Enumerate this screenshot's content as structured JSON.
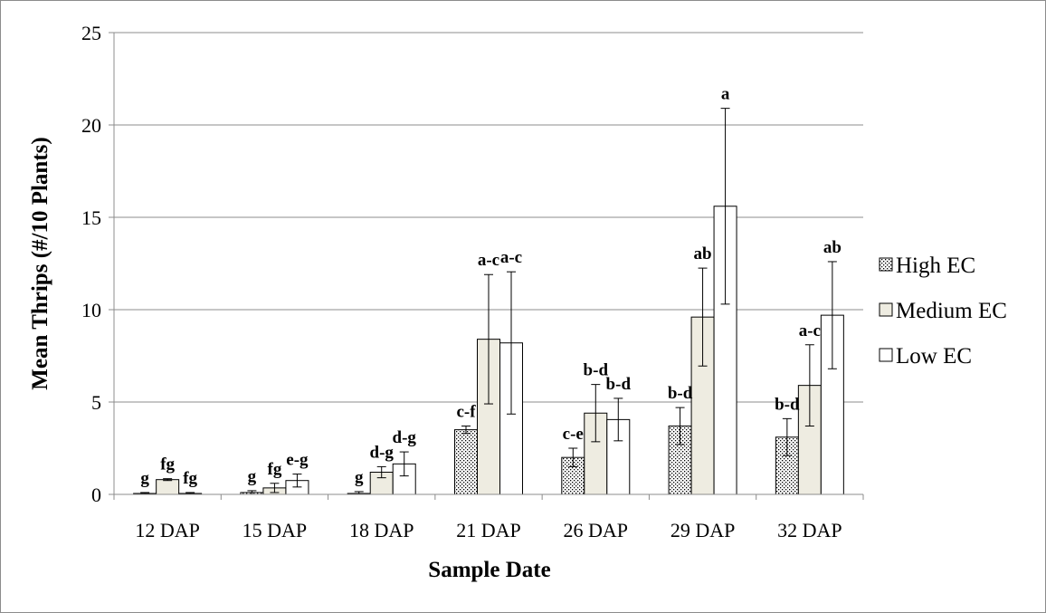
{
  "chart_data": {
    "type": "bar",
    "xlabel": "Sample Date",
    "ylabel": "Mean Thrips (#/10 Plants)",
    "ylim": [
      0,
      25
    ],
    "yticks": [
      0,
      5,
      10,
      15,
      20,
      25
    ],
    "grid": "horizontal",
    "legend_position": "right",
    "categories": [
      "12 DAP",
      "15 DAP",
      "18 DAP",
      "21 DAP",
      "26 DAP",
      "29 DAP",
      "32 DAP"
    ],
    "series": [
      {
        "name": "High EC",
        "pattern": "dotted",
        "fill": "#ffffff",
        "values": [
          0.05,
          0.1,
          0.05,
          3.5,
          2.0,
          3.7,
          3.1
        ],
        "errors": [
          0.05,
          0.1,
          0.1,
          0.2,
          0.5,
          1.0,
          1.0
        ],
        "labels": [
          "g",
          "g",
          "g",
          "c-f",
          "c-e",
          "b-d",
          "b-d"
        ]
      },
      {
        "name": "Medium EC",
        "pattern": "solid",
        "fill": "#eeece1",
        "values": [
          0.8,
          0.35,
          1.2,
          8.4,
          4.4,
          9.6,
          5.9
        ],
        "errors": [
          0.05,
          0.25,
          0.3,
          3.5,
          1.55,
          2.65,
          2.2
        ],
        "labels": [
          "fg",
          "fg",
          "d-g",
          "a-c",
          "b-d",
          "ab",
          "a-c"
        ]
      },
      {
        "name": "Low EC",
        "pattern": "solid",
        "fill": "#ffffff",
        "values": [
          0.05,
          0.75,
          1.65,
          8.2,
          4.05,
          15.6,
          9.7
        ],
        "errors": [
          0.05,
          0.35,
          0.65,
          3.85,
          1.15,
          5.3,
          2.9
        ],
        "labels": [
          "fg",
          "e-g",
          "d-g",
          "a-c",
          "b-d",
          "a",
          "ab"
        ]
      }
    ]
  }
}
